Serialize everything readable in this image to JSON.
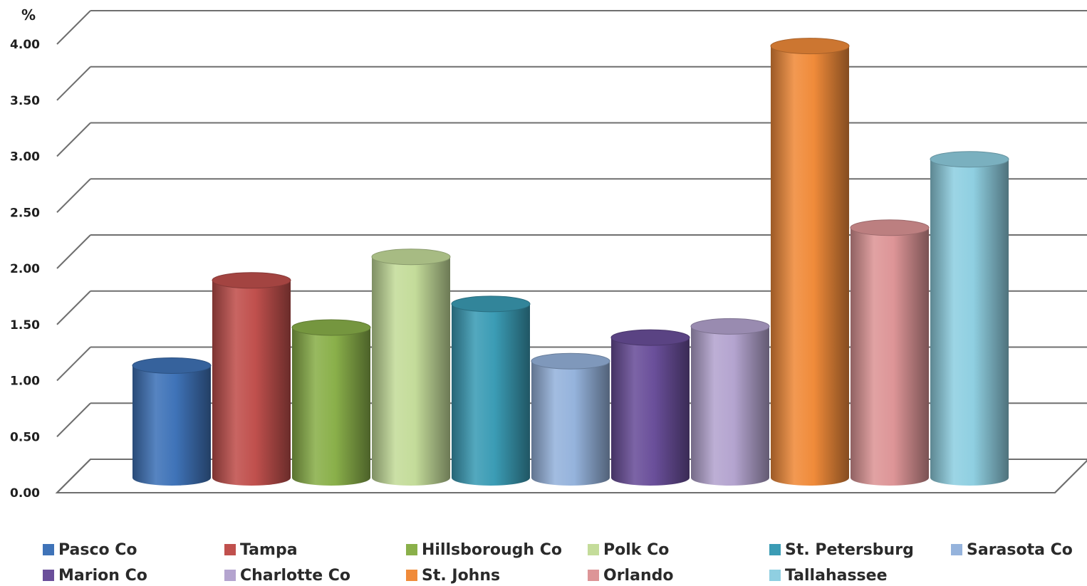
{
  "chart_data": {
    "type": "bar",
    "unit_label": "%",
    "ylim": [
      0,
      4.0
    ],
    "y_ticks": [
      "0.00",
      "0.50",
      "1.00",
      "1.50",
      "2.00",
      "2.50",
      "3.00",
      "3.50",
      "4.00"
    ],
    "grid": true,
    "legend_position": "bottom",
    "series": [
      {
        "name": "Pasco Co",
        "value": 1.0,
        "color": "#3f73b8"
      },
      {
        "name": "Tampa",
        "value": 1.76,
        "color": "#c0504d"
      },
      {
        "name": "Hillsborough Co",
        "value": 1.34,
        "color": "#8ab04a"
      },
      {
        "name": "Polk Co",
        "value": 1.97,
        "color": "#c4dc9a"
      },
      {
        "name": "St. Petersburg",
        "value": 1.55,
        "color": "#3b9cb5"
      },
      {
        "name": "Sarasota Co",
        "value": 1.04,
        "color": "#95b3dc"
      },
      {
        "name": "Marion Co",
        "value": 1.25,
        "color": "#6a4f9a"
      },
      {
        "name": "Charlotte Co",
        "value": 1.35,
        "color": "#b4a4cf"
      },
      {
        "name": "St. Johns",
        "value": 3.85,
        "color": "#f08b3a"
      },
      {
        "name": "Orlando",
        "value": 2.23,
        "color": "#dd9597"
      },
      {
        "name": "Tallahassee",
        "value": 2.84,
        "color": "#8fcfe1"
      }
    ]
  }
}
